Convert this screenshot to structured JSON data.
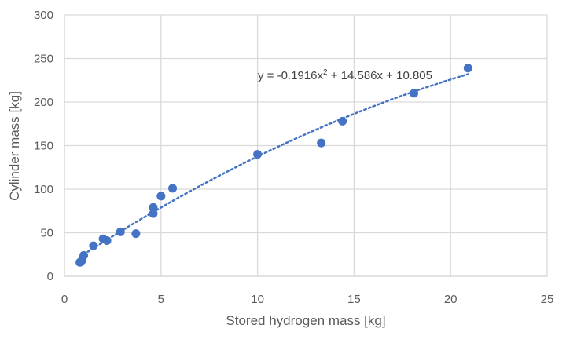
{
  "chart_data": {
    "type": "scatter",
    "title": "",
    "xlabel": "Stored hydrogen mass [kg]",
    "ylabel": "Cylinder mass [kg]",
    "xlim": [
      0,
      25
    ],
    "ylim": [
      0,
      300
    ],
    "xticks": [
      "0",
      "5",
      "10",
      "15",
      "20",
      "25"
    ],
    "yticks": [
      "0",
      "50",
      "100",
      "150",
      "200",
      "250",
      "300"
    ],
    "grid": true,
    "legend": "none",
    "colors": {
      "points": "#4472C4",
      "trendline": "#4472C4",
      "grid": "#D9D9D9"
    },
    "points": [
      {
        "x": 0.8,
        "y": 16
      },
      {
        "x": 0.9,
        "y": 18
      },
      {
        "x": 1.0,
        "y": 24
      },
      {
        "x": 1.5,
        "y": 35
      },
      {
        "x": 2.0,
        "y": 43
      },
      {
        "x": 2.2,
        "y": 41
      },
      {
        "x": 2.9,
        "y": 51
      },
      {
        "x": 3.7,
        "y": 49
      },
      {
        "x": 4.6,
        "y": 79
      },
      {
        "x": 4.6,
        "y": 72
      },
      {
        "x": 5.0,
        "y": 92
      },
      {
        "x": 5.6,
        "y": 101
      },
      {
        "x": 10.0,
        "y": 140
      },
      {
        "x": 13.3,
        "y": 153
      },
      {
        "x": 14.4,
        "y": 178
      },
      {
        "x": 18.1,
        "y": 210
      },
      {
        "x": 20.9,
        "y": 239
      }
    ],
    "trendline": {
      "type": "polynomial",
      "coefficients": {
        "a": -0.1916,
        "b": 14.586,
        "c": 10.805
      },
      "x_range": [
        0.8,
        20.9
      ]
    },
    "annotation": {
      "equation_prefix": "y = -0.1916x",
      "equation_sup": "2",
      "equation_suffix": " + 14.586x + 10.805"
    }
  }
}
